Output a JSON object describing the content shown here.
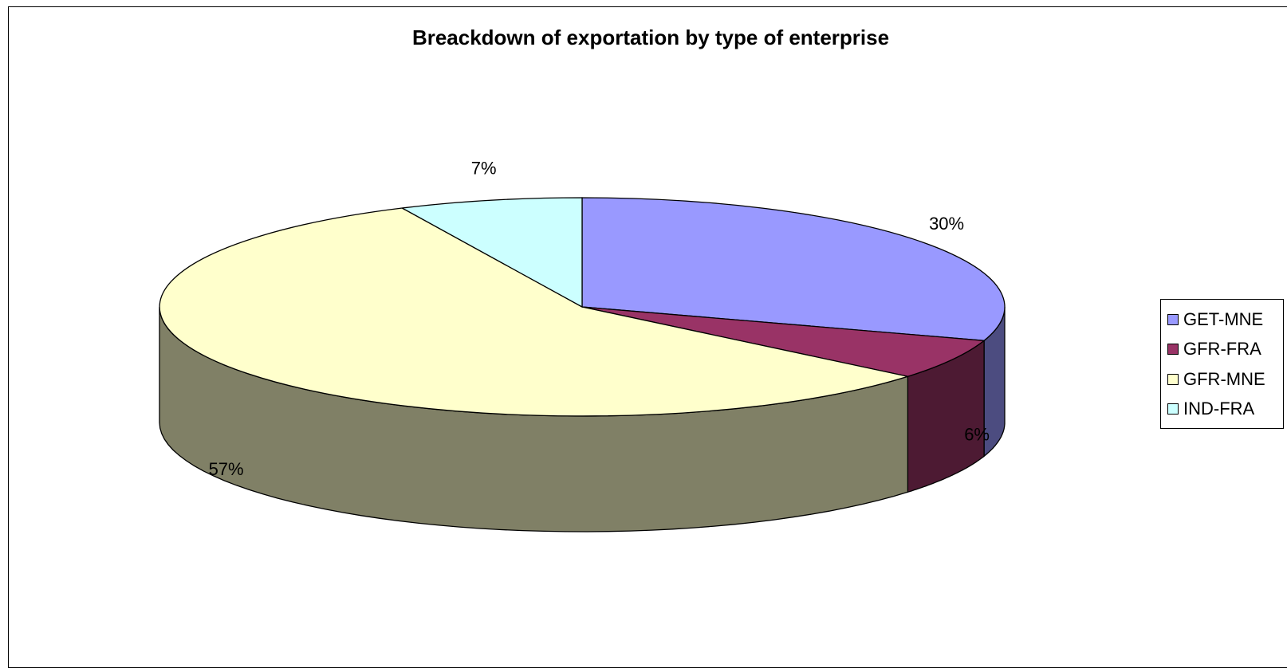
{
  "chart_data": {
    "type": "pie",
    "title": "Breackdown of exportation by type of enterprise",
    "categories": [
      "GET-MNE",
      "GFR-FRA",
      "GFR-MNE",
      "IND-FRA"
    ],
    "values": [
      30,
      6,
      57,
      7
    ],
    "labels": [
      "30%",
      "6%",
      "57%",
      "7%"
    ],
    "colors": [
      "#9999FF",
      "#993366",
      "#FFFFCC",
      "#CCFFFF"
    ],
    "side_colors": [
      "#4C4C80",
      "#4D1A33",
      "#808066",
      "#668080"
    ],
    "style": "3d",
    "legend_position": "right"
  }
}
